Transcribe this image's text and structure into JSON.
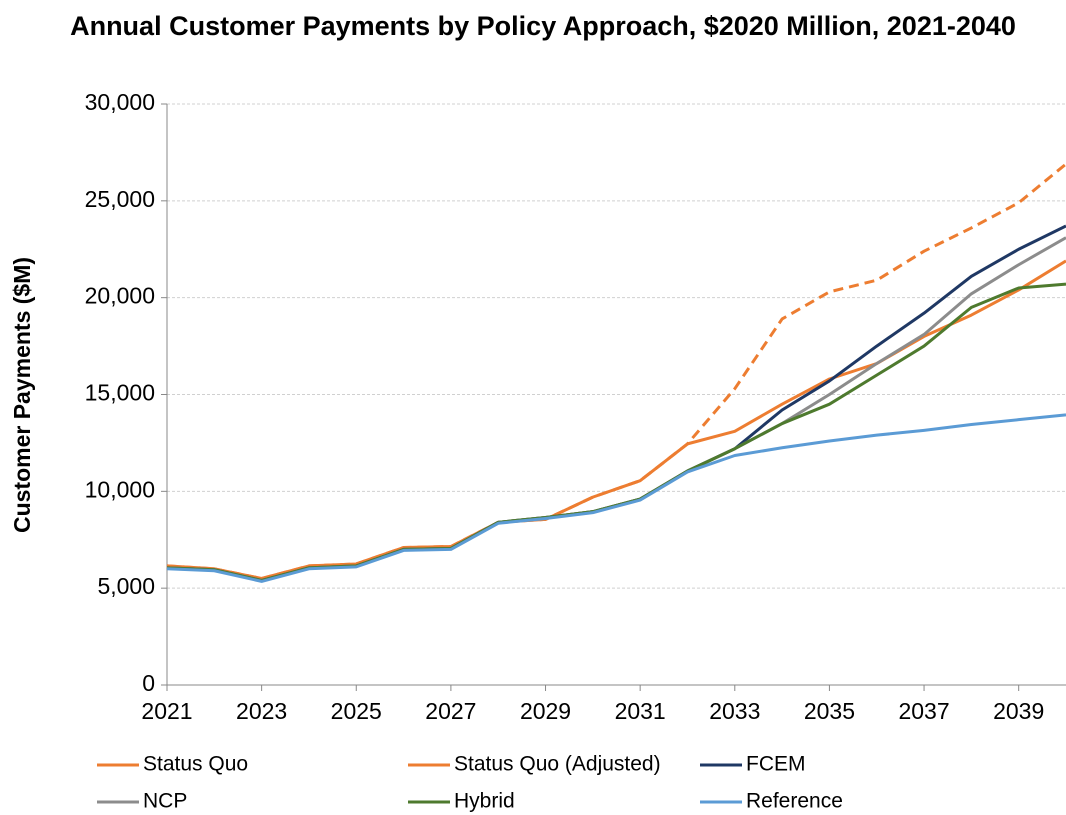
{
  "chart_data": {
    "type": "line",
    "title": "Annual Customer Payments by Policy Approach, $2020 Million, 2021-2040",
    "y_label": "Customer Payments ($M)",
    "x": [
      2021,
      2022,
      2023,
      2024,
      2025,
      2026,
      2027,
      2028,
      2029,
      2030,
      2031,
      2032,
      2033,
      2034,
      2035,
      2036,
      2037,
      2038,
      2039,
      2040
    ],
    "xlim": [
      2021,
      2040
    ],
    "xticks": [
      2021,
      2023,
      2025,
      2027,
      2029,
      2031,
      2033,
      2035,
      2037,
      2039
    ],
    "ylim": [
      0,
      30000
    ],
    "yticks": [
      0,
      {
        "value": 5000,
        "label": "5,000"
      },
      {
        "value": 10000,
        "label": "10,000"
      },
      {
        "value": 15000,
        "label": "15,000"
      },
      {
        "value": 20000,
        "label": "20,000"
      },
      {
        "value": 25000,
        "label": "25,000"
      },
      {
        "value": 30000,
        "label": "30,000"
      }
    ],
    "grid": true,
    "legend": "bottom",
    "series": [
      {
        "name": "Status Quo",
        "color": "#ed7d31",
        "dashed": false,
        "values": [
          6150,
          6000,
          5500,
          6150,
          6250,
          7100,
          7150,
          8400,
          8550,
          9700,
          10550,
          12450,
          13100,
          14500,
          15800,
          16600,
          18000,
          19100,
          20400,
          21900
        ]
      },
      {
        "name": "Status Quo (Adjusted)",
        "color": "#ed7d31",
        "dashed": true,
        "values": [
          6150,
          6000,
          5500,
          6150,
          6250,
          7100,
          7150,
          8400,
          8550,
          9700,
          10550,
          12450,
          15300,
          18900,
          20300,
          20900,
          22400,
          23600,
          24900,
          26900
        ]
      },
      {
        "name": "FCEM",
        "color": "#1f3864",
        "dashed": false,
        "values": [
          6050,
          5950,
          5400,
          6050,
          6150,
          7000,
          7050,
          8400,
          8650,
          8950,
          9600,
          11050,
          12200,
          14200,
          15700,
          17500,
          19200,
          21100,
          22500,
          23700
        ]
      },
      {
        "name": "NCP",
        "color": "#8c8c8c",
        "dashed": false,
        "values": [
          6050,
          5950,
          5400,
          6050,
          6150,
          7000,
          7050,
          8400,
          8650,
          8950,
          9600,
          11050,
          12200,
          13500,
          15000,
          16600,
          18100,
          20200,
          21700,
          23100
        ]
      },
      {
        "name": "Hybrid",
        "color": "#4e7a2e",
        "dashed": false,
        "values": [
          6050,
          5950,
          5400,
          6050,
          6150,
          7000,
          7050,
          8400,
          8650,
          8950,
          9600,
          11050,
          12200,
          13500,
          14500,
          16000,
          17500,
          19500,
          20500,
          20700
        ]
      },
      {
        "name": "Reference",
        "color": "#5b9bd5",
        "dashed": false,
        "values": [
          6000,
          5900,
          5350,
          6000,
          6100,
          6950,
          7000,
          8350,
          8600,
          8900,
          9550,
          11000,
          11850,
          12250,
          12600,
          12900,
          13150,
          13450,
          13700,
          13950
        ]
      }
    ]
  }
}
